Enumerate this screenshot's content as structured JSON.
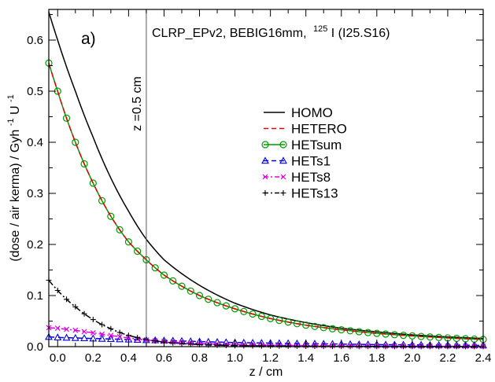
{
  "chart_data": {
    "type": "line",
    "panel_label": "a)",
    "title": "CLRP_EPv2, BEBIG16mm,",
    "title_sup": "125",
    "title_tail": "I (I25.S16)",
    "xlabel": "z / cm",
    "ylabel": "(dose / air kerma)  / Gyh",
    "ylabel_sup1": "-1",
    "ylabel_mid": "U",
    "ylabel_sup2": "-1",
    "xlim": [
      -0.05,
      2.4
    ],
    "ylim": [
      0,
      0.66
    ],
    "xticks": [
      0.0,
      0.2,
      0.4,
      0.6,
      0.8,
      1.0,
      1.2,
      1.4,
      1.6,
      1.8,
      2.0,
      2.2,
      2.4
    ],
    "xtick_labels": [
      "0.0",
      "0.2",
      "0.4",
      "0.6",
      "0.8",
      "1.0",
      "1.2",
      "1.4",
      "1.6",
      "1.8",
      "2.0",
      "2.2",
      "2.4"
    ],
    "yticks": [
      0.0,
      0.1,
      0.2,
      0.3,
      0.4,
      0.5,
      0.6
    ],
    "ytick_labels": [
      "0.0",
      "0.1",
      "0.2",
      "0.3",
      "0.4",
      "0.5",
      "0.6"
    ],
    "vline": {
      "x": 0.5,
      "label": "z =0.5  cm"
    },
    "legend_position": "center-right",
    "grid": false,
    "series": [
      {
        "name": "HOMO",
        "color": "#000000",
        "dash": "solid",
        "marker": "none",
        "x": [
          -0.05,
          0.0,
          0.1,
          0.2,
          0.3,
          0.4,
          0.5,
          0.6,
          0.8,
          1.0,
          1.2,
          1.4,
          1.6,
          1.8,
          2.0,
          2.2,
          2.4
        ],
        "y": [
          0.655,
          0.6,
          0.5,
          0.41,
          0.33,
          0.265,
          0.21,
          0.17,
          0.12,
          0.085,
          0.062,
          0.047,
          0.036,
          0.029,
          0.023,
          0.019,
          0.016
        ]
      },
      {
        "name": "HETERO",
        "color": "#e00000",
        "dash": "dashed",
        "marker": "none",
        "x": [
          -0.05,
          0.0,
          0.1,
          0.2,
          0.3,
          0.4,
          0.5,
          0.6,
          0.8,
          1.0,
          1.2,
          1.4,
          1.6,
          1.8,
          2.0,
          2.2,
          2.4
        ],
        "y": [
          0.555,
          0.5,
          0.4,
          0.32,
          0.255,
          0.205,
          0.17,
          0.14,
          0.1,
          0.074,
          0.055,
          0.042,
          0.033,
          0.026,
          0.021,
          0.017,
          0.014
        ]
      },
      {
        "name": "HETsum",
        "color": "#009900",
        "dash": "solid",
        "marker": "circle",
        "x": [
          -0.05,
          0.0,
          0.1,
          0.2,
          0.3,
          0.4,
          0.5,
          0.6,
          0.8,
          1.0,
          1.2,
          1.4,
          1.6,
          1.8,
          2.0,
          2.2,
          2.4
        ],
        "y": [
          0.555,
          0.5,
          0.4,
          0.32,
          0.255,
          0.205,
          0.17,
          0.14,
          0.1,
          0.074,
          0.055,
          0.042,
          0.033,
          0.026,
          0.021,
          0.017,
          0.014
        ]
      },
      {
        "name": "HETs1",
        "color": "#0000dd",
        "dash": "dashed",
        "marker": "triangle",
        "x": [
          -0.05,
          0.0,
          0.2,
          0.4,
          0.6,
          0.8,
          1.0,
          1.2,
          1.4,
          1.6,
          1.8,
          2.0,
          2.2,
          2.4
        ],
        "y": [
          0.019,
          0.018,
          0.016,
          0.014,
          0.012,
          0.01,
          0.008,
          0.007,
          0.006,
          0.005,
          0.004,
          0.0035,
          0.003,
          0.0025
        ]
      },
      {
        "name": "HETs8",
        "color": "#dd00dd",
        "dash": "dashdot",
        "marker": "cross",
        "x": [
          -0.05,
          0.0,
          0.1,
          0.2,
          0.3,
          0.4,
          0.5,
          0.6,
          0.8,
          1.0,
          1.2,
          1.4,
          1.6,
          1.8,
          2.0,
          2.2,
          2.4
        ],
        "y": [
          0.037,
          0.036,
          0.032,
          0.027,
          0.022,
          0.017,
          0.013,
          0.01,
          0.006,
          0.004,
          0.003,
          0.002,
          0.0015,
          0.001,
          0.001,
          0.0008,
          0.0006
        ]
      },
      {
        "name": "HETs13",
        "color": "#000000",
        "dash": "dashdot",
        "marker": "plus",
        "x": [
          -0.05,
          0.0,
          0.1,
          0.2,
          0.3,
          0.4,
          0.5,
          0.6,
          0.8,
          1.0,
          1.2,
          1.4,
          1.6,
          1.8,
          2.0,
          2.2,
          2.4
        ],
        "y": [
          0.13,
          0.11,
          0.078,
          0.053,
          0.035,
          0.022,
          0.014,
          0.009,
          0.004,
          0.002,
          0.0012,
          0.0008,
          0.0005,
          0.0004,
          0.0003,
          0.0002,
          0.0002
        ]
      }
    ]
  }
}
